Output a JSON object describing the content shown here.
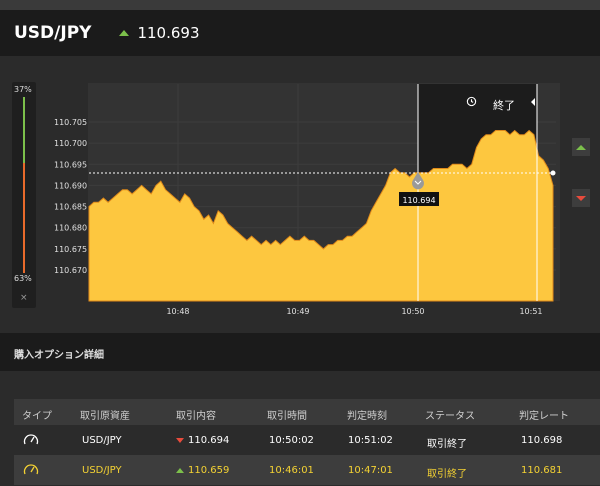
{
  "header": {
    "pair": "USD/JPY",
    "price": "110.693",
    "direction_icon": "up-arrow-icon"
  },
  "sidebar": {
    "top_percent": "37%",
    "bottom_percent": "63%",
    "close": "×"
  },
  "chart_controls": {
    "end_label": "終了"
  },
  "chart_data": {
    "type": "area",
    "title": "",
    "y_ticks": [
      "110.705",
      "110.700",
      "110.695",
      "110.690",
      "110.685",
      "110.680",
      "110.675",
      "110.670"
    ],
    "x_ticks": [
      "10:48",
      "10:49",
      "10:50",
      "10:51"
    ],
    "current_marker_value": "110.694",
    "ylim": [
      110.666,
      110.708
    ],
    "fill_color": "#fdc73f",
    "line_color": "#e08a1a",
    "series": [
      {
        "values": [
          110.685,
          110.686,
          110.686,
          110.687,
          110.686,
          110.687,
          110.688,
          110.689,
          110.689,
          110.688,
          110.689,
          110.69,
          110.689,
          110.688,
          110.69,
          110.691,
          110.689,
          110.688,
          110.687,
          110.686,
          110.688,
          110.687,
          110.685,
          110.684,
          110.682,
          110.683,
          110.681,
          110.684,
          110.683,
          110.681,
          110.68,
          110.679,
          110.678,
          110.677,
          110.678,
          110.677,
          110.676,
          110.677,
          110.676,
          110.677,
          110.676,
          110.677,
          110.678,
          110.677,
          110.677,
          110.678,
          110.677,
          110.677,
          110.676,
          110.675,
          110.676,
          110.676,
          110.677,
          110.677,
          110.678,
          110.678,
          110.679,
          110.68,
          110.681,
          110.684,
          110.686,
          110.688,
          110.69,
          110.693,
          110.694,
          110.693,
          110.693,
          110.692,
          110.693,
          110.693,
          110.693,
          110.693,
          110.694,
          110.694,
          110.694,
          110.694,
          110.695,
          110.695,
          110.695,
          110.694,
          110.695,
          110.699,
          110.701,
          110.702,
          110.702,
          110.703,
          110.703,
          110.703,
          110.702,
          110.703,
          110.702,
          110.702,
          110.703,
          110.702,
          110.697,
          110.696,
          110.694,
          110.69
        ]
      }
    ]
  },
  "section": {
    "title": "購入オプション詳細"
  },
  "table": {
    "headers": [
      "タイプ",
      "取引原資産",
      "取引内容",
      "取引時間",
      "判定時刻",
      "ステータス",
      "判定レート"
    ],
    "rows": [
      {
        "type_icon": "gauge-icon",
        "asset": "USD/JPY",
        "direction": "down",
        "trade": "110.694",
        "time": "10:50:02",
        "judge_time": "10:51:02",
        "status": "取引終了",
        "rate": "110.698"
      },
      {
        "type_icon": "gauge-icon",
        "asset": "USD/JPY",
        "direction": "up",
        "trade": "110.659",
        "time": "10:46:01",
        "judge_time": "10:47:01",
        "status": "取引終了",
        "rate": "110.681"
      }
    ]
  }
}
